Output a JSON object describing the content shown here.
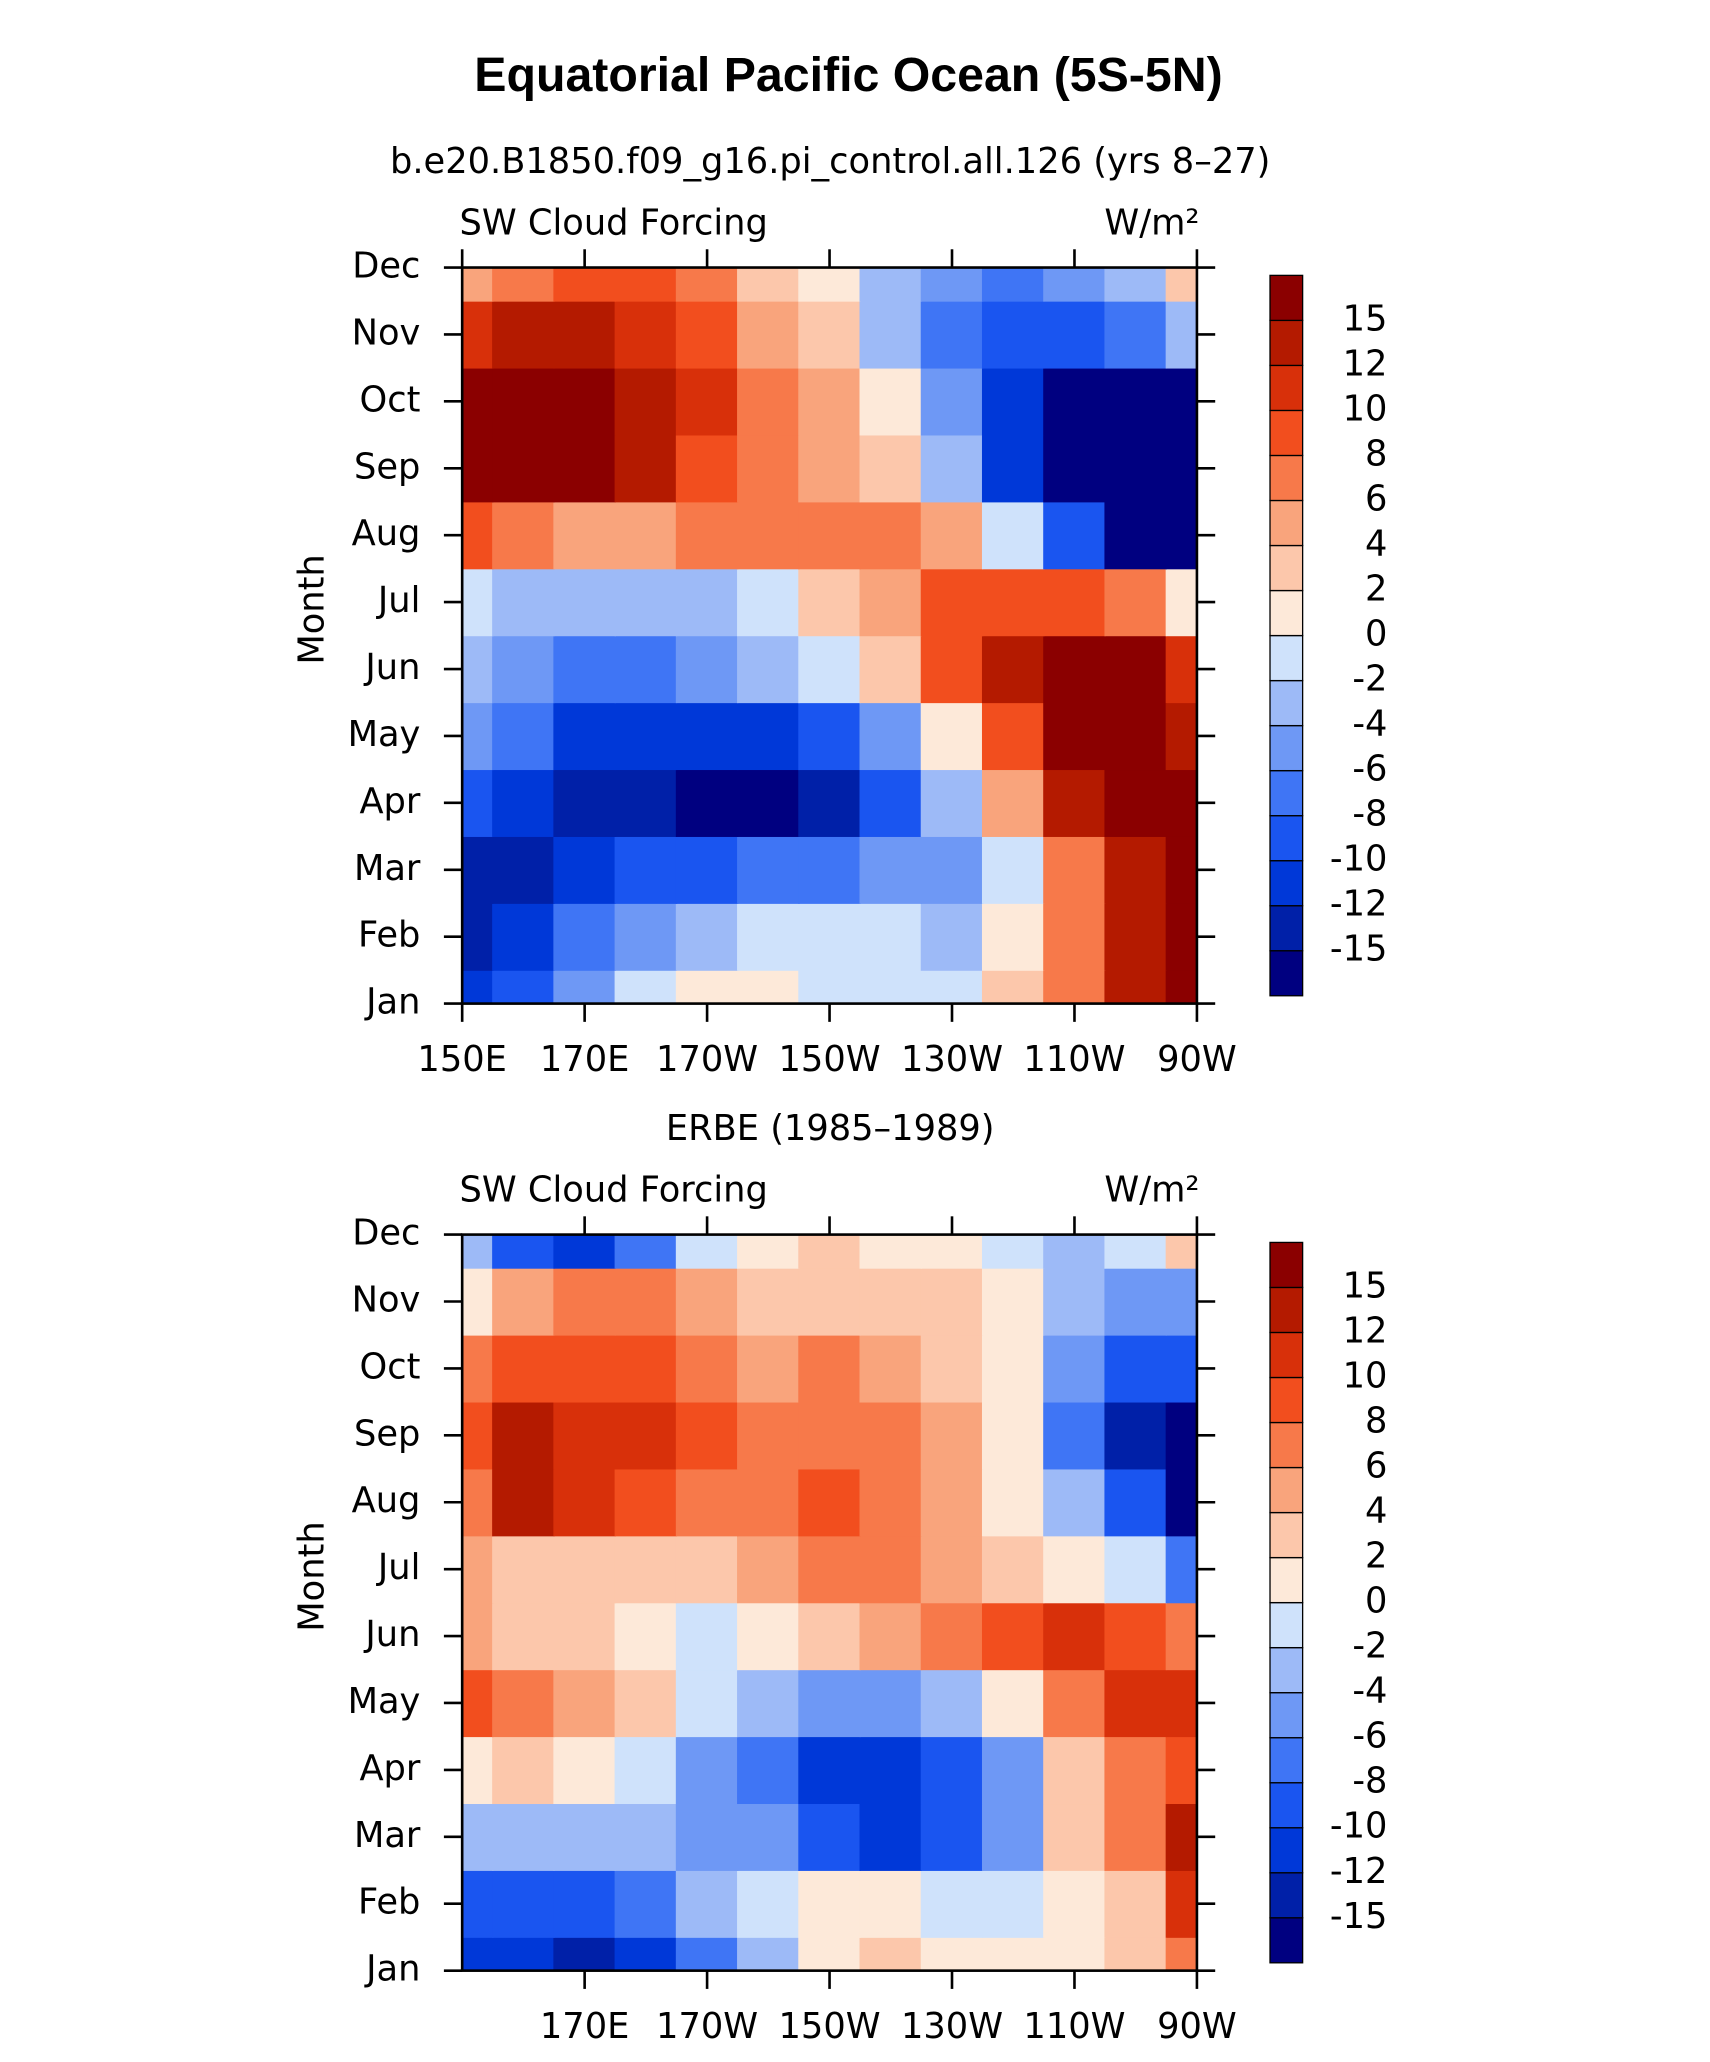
{
  "title": "Equatorial Pacific Ocean (5S-5N)",
  "chart_data": [
    {
      "type": "contour",
      "subtitle": "b.e20.B1850.f09_g16.pi_control.all.126 (yrs 8–27)",
      "left_label": "SW Cloud Forcing",
      "right_label": "W/m²",
      "ylabel": "Month",
      "categories": [
        "Jan",
        "Feb",
        "Mar",
        "Apr",
        "May",
        "Jun",
        "Jul",
        "Aug",
        "Sep",
        "Oct",
        "Nov",
        "Dec"
      ],
      "x": [
        150,
        160,
        170,
        180,
        190,
        200,
        210,
        220,
        230,
        240,
        250,
        260,
        270
      ],
      "xlim": [
        150,
        270
      ],
      "xticks": [
        {
          "value": 150,
          "label": "150E"
        },
        {
          "value": 170,
          "label": "170E"
        },
        {
          "value": 190,
          "label": "170W"
        },
        {
          "value": 210,
          "label": "150W"
        },
        {
          "value": 230,
          "label": "130W"
        },
        {
          "value": 250,
          "label": "110W"
        },
        {
          "value": 270,
          "label": "90W"
        }
      ],
      "levels": [
        -15,
        -12,
        -10,
        -8,
        -6,
        -4,
        -2,
        0,
        2,
        4,
        6,
        8,
        10,
        12,
        15
      ],
      "colors": [
        "#000080",
        "#0020a8",
        "#0038d8",
        "#1a55f0",
        "#3f75f5",
        "#6e98f5",
        "#9dbaf7",
        "#cfe2fb",
        "#fde9d9",
        "#fcc7ab",
        "#f9a47c",
        "#f7794a",
        "#f24e1e",
        "#d8300a",
        "#b41a00",
        "#8b0000"
      ],
      "values": [
        [
          -12,
          -10,
          -6,
          -2,
          1,
          0,
          -1,
          -1,
          -2,
          2,
          6,
          12,
          15
        ],
        [
          -14,
          -12,
          -8,
          -5,
          -3,
          -2,
          -2,
          -2,
          -4,
          0,
          6,
          12,
          15
        ],
        [
          -14,
          -13,
          -11,
          -10,
          -9,
          -8,
          -7,
          -6,
          -5,
          -1,
          6,
          12,
          15
        ],
        [
          -10,
          -12,
          -13,
          -14,
          -16,
          -16,
          -13,
          -10,
          -4,
          4,
          12,
          15,
          15
        ],
        [
          -6,
          -8,
          -11,
          -12,
          -12,
          -11,
          -9,
          -5,
          1,
          8,
          15,
          15,
          12
        ],
        [
          -3,
          -5,
          -8,
          -7,
          -6,
          -4,
          -1,
          3,
          8,
          12,
          15,
          15,
          10
        ],
        [
          -1,
          -4,
          -4,
          -4,
          -3,
          -1,
          2,
          5,
          8,
          8,
          8,
          6,
          1
        ],
        [
          8,
          7,
          5,
          5,
          6,
          6,
          6,
          6,
          4,
          -2,
          -10,
          -16,
          -16
        ],
        [
          15,
          15,
          15,
          12,
          8,
          6,
          4,
          2,
          -4,
          -12,
          -16,
          -16,
          -16
        ],
        [
          15,
          15,
          15,
          12,
          10,
          6,
          4,
          0,
          -6,
          -12,
          -16,
          -16,
          -16
        ],
        [
          10,
          12,
          12,
          10,
          8,
          5,
          2,
          -4,
          -8,
          -10,
          -10,
          -8,
          -3
        ],
        [
          4,
          6,
          8,
          8,
          6,
          3,
          0,
          -3,
          -6,
          -8,
          -6,
          -4,
          2
        ]
      ]
    },
    {
      "type": "contour",
      "subtitle": "ERBE (1985–1989)",
      "left_label": "SW Cloud Forcing",
      "right_label": "W/m²",
      "ylabel": "Month",
      "categories": [
        "Jan",
        "Feb",
        "Mar",
        "Apr",
        "May",
        "Jun",
        "Jul",
        "Aug",
        "Sep",
        "Oct",
        "Nov",
        "Dec"
      ],
      "x": [
        150,
        160,
        170,
        180,
        190,
        200,
        210,
        220,
        230,
        240,
        250,
        260,
        270
      ],
      "xlim": [
        150,
        270
      ],
      "xticks": [
        {
          "value": 170,
          "label": "170E"
        },
        {
          "value": 190,
          "label": "170W"
        },
        {
          "value": 210,
          "label": "150W"
        },
        {
          "value": 230,
          "label": "130W"
        },
        {
          "value": 250,
          "label": "110W"
        },
        {
          "value": 270,
          "label": "90W"
        }
      ],
      "levels": [
        -15,
        -12,
        -10,
        -8,
        -6,
        -4,
        -2,
        0,
        2,
        4,
        6,
        8,
        10,
        12,
        15
      ],
      "colors": [
        "#000080",
        "#0020a8",
        "#0038d8",
        "#1a55f0",
        "#3f75f5",
        "#6e98f5",
        "#9dbaf7",
        "#cfe2fb",
        "#fde9d9",
        "#fcc7ab",
        "#f9a47c",
        "#f7794a",
        "#f24e1e",
        "#d8300a",
        "#b41a00",
        "#8b0000"
      ],
      "values": [
        [
          -12,
          -12,
          -14,
          -12,
          -8,
          -4,
          1,
          2,
          1,
          0,
          0,
          2,
          6
        ],
        [
          -10,
          -10,
          -10,
          -8,
          -4,
          -1,
          1,
          0,
          -1,
          -1,
          1,
          3,
          10
        ],
        [
          -4,
          -4,
          -4,
          -4,
          -5,
          -6,
          -9,
          -11,
          -10,
          -6,
          2,
          6,
          12
        ],
        [
          0,
          2,
          1,
          -2,
          -6,
          -8,
          -11,
          -12,
          -10,
          -5,
          2,
          6,
          8
        ],
        [
          8,
          6,
          4,
          2,
          -2,
          -4,
          -6,
          -6,
          -4,
          0,
          6,
          10,
          10
        ],
        [
          4,
          3,
          3,
          0,
          -2,
          0,
          2,
          4,
          6,
          8,
          10,
          8,
          6
        ],
        [
          4,
          3,
          3,
          2,
          3,
          5,
          6,
          6,
          4,
          2,
          0,
          -2,
          -8
        ],
        [
          6,
          12,
          10,
          8,
          6,
          7,
          8,
          6,
          4,
          1,
          -4,
          -10,
          -16
        ],
        [
          8,
          12,
          10,
          10,
          8,
          6,
          6,
          6,
          4,
          0,
          -8,
          -13,
          -16
        ],
        [
          6,
          8,
          8,
          8,
          6,
          4,
          6,
          4,
          2,
          0,
          -6,
          -10,
          -10
        ],
        [
          0,
          4,
          6,
          6,
          4,
          2,
          2,
          2,
          2,
          0,
          -4,
          -6,
          -6
        ],
        [
          -4,
          -10,
          -12,
          -8,
          -2,
          1,
          2,
          1,
          0,
          -2,
          -4,
          -2,
          2
        ]
      ]
    }
  ]
}
